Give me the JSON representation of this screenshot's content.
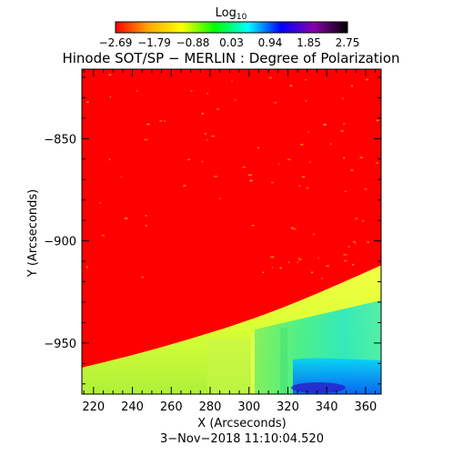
{
  "colorbar": {
    "label_main": "Log",
    "label_sub": "10",
    "tick_labels": [
      "−2.69",
      "−1.79",
      "−0.88",
      "0.03",
      "0.94",
      "1.85",
      "2.75"
    ],
    "range": [
      -2.69,
      2.75
    ],
    "colors": [
      "#ff0000",
      "#ffaa00",
      "#ffff00",
      "#00ff00",
      "#00ffff",
      "#0000ff",
      "#8800aa",
      "#000000"
    ]
  },
  "chart_data": {
    "type": "heatmap",
    "title": "Hinode SOT/SP − MERLIN : Degree of Polarization",
    "xlabel": "X (Arcseconds)",
    "ylabel": "Y (Arcseconds)",
    "xlim": [
      214,
      368
    ],
    "ylim": [
      -975,
      -816
    ],
    "x_ticks": [
      220,
      240,
      260,
      280,
      300,
      320,
      340,
      360
    ],
    "y_ticks": [
      -850,
      -900,
      -950
    ],
    "x_tick_labels": [
      "220",
      "240",
      "260",
      "280",
      "300",
      "320",
      "340",
      "360"
    ],
    "y_tick_labels": [
      "−850",
      "−900",
      "−950"
    ],
    "limb_curve": [
      {
        "x": 214,
        "y": -962
      },
      {
        "x": 240,
        "y": -956
      },
      {
        "x": 270,
        "y": -948
      },
      {
        "x": 300,
        "y": -939
      },
      {
        "x": 330,
        "y": -928
      },
      {
        "x": 368,
        "y": -912
      }
    ],
    "background_value": -2.69,
    "disk_value": 0.0
  },
  "footer": {
    "timestamp": "3−Nov−2018 11:10:04.520"
  }
}
